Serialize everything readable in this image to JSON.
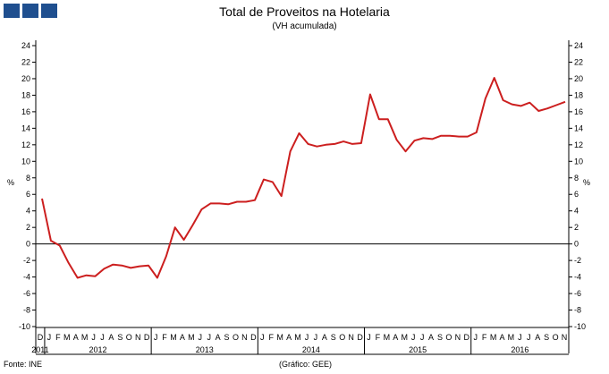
{
  "header": {
    "logo_icon": "brand-logo-squares",
    "title": "Total de Proveitos na Hotelaria",
    "subtitle": "(VH acumulada)"
  },
  "footer": {
    "source": "Fonte: INE",
    "credit": "(Gráfico: GEE)"
  },
  "colors": {
    "line": "#cc1f1f",
    "logo": "#1f4f8f",
    "axis": "#000000"
  },
  "chart_data": {
    "type": "line",
    "title": "Total de Proveitos na Hotelaria",
    "subtitle": "(VH acumulada)",
    "ylabel": "%",
    "ylim": [
      -10,
      24
    ],
    "yticks": [
      -10,
      -8,
      -6,
      -4,
      -2,
      0,
      2,
      4,
      6,
      8,
      10,
      12,
      14,
      16,
      18,
      20,
      22,
      24
    ],
    "grid": false,
    "legend": "none",
    "x_months": [
      "D",
      "J",
      "F",
      "M",
      "A",
      "M",
      "J",
      "J",
      "A",
      "S",
      "O",
      "N",
      "D",
      "J",
      "F",
      "M",
      "A",
      "M",
      "J",
      "J",
      "A",
      "S",
      "O",
      "N",
      "D",
      "J",
      "F",
      "M",
      "A",
      "M",
      "J",
      "J",
      "A",
      "S",
      "O",
      "N",
      "D",
      "J",
      "F",
      "M",
      "A",
      "M",
      "J",
      "J",
      "A",
      "S",
      "O",
      "N",
      "D",
      "J",
      "F",
      "M",
      "A",
      "M",
      "J",
      "J",
      "A",
      "S",
      "O",
      "N"
    ],
    "x_years": [
      {
        "label": "2011",
        "start": 0,
        "end": 0
      },
      {
        "label": "2012",
        "start": 1,
        "end": 12
      },
      {
        "label": "2013",
        "start": 13,
        "end": 24
      },
      {
        "label": "2014",
        "start": 25,
        "end": 36
      },
      {
        "label": "2015",
        "start": 37,
        "end": 48
      },
      {
        "label": "2016",
        "start": 49,
        "end": 59
      }
    ],
    "series": [
      {
        "values": [
          5.5,
          0.4,
          -0.2,
          -2.3,
          -4.1,
          -3.8,
          -3.9,
          -3.0,
          -2.5,
          -2.6,
          -2.9,
          -2.7,
          -2.6,
          -4.1,
          -1.5,
          2.0,
          0.5,
          2.3,
          4.2,
          4.9,
          4.9,
          4.8,
          5.1,
          5.1,
          5.3,
          7.8,
          7.5,
          5.8,
          11.2,
          13.4,
          12.1,
          11.8,
          12.0,
          12.1,
          12.4,
          12.1,
          12.2,
          18.1,
          15.1,
          15.1,
          12.6,
          11.2,
          12.5,
          12.8,
          12.7,
          13.1,
          13.1,
          13.0,
          13.0,
          13.5,
          17.6,
          20.1,
          17.4,
          16.9,
          16.7,
          17.1,
          16.1,
          16.4,
          16.8,
          17.2
        ]
      }
    ]
  }
}
